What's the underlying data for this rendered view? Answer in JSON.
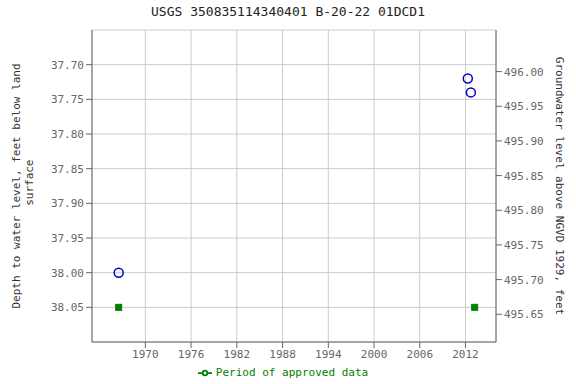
{
  "chart_data": {
    "type": "scatter",
    "title": "USGS 350835114340401 B-20-22 01DCD1",
    "ylabel": "Depth to water level, feet below land\n surface",
    "y2label": "Groundwater level above NGVD 1929, feet",
    "xlim": [
      1963,
      2016
    ],
    "xticks": [
      1970,
      1976,
      1982,
      1988,
      1994,
      2000,
      2006,
      2012
    ],
    "ylim": [
      38.1,
      37.65
    ],
    "yticks": [
      {
        "value": 37.7,
        "label": "37.70"
      },
      37.75,
      {
        "value": 37.8,
        "label": "37.80"
      },
      37.85,
      {
        "value": 37.9,
        "label": "37.90"
      },
      37.95,
      {
        "value": 38.0,
        "label": "38.00"
      },
      38.05
    ],
    "y2lim": [
      495.61,
      496.06
    ],
    "y2ticks": [
      495.65,
      {
        "value": 495.7,
        "label": "495.70"
      },
      495.75,
      {
        "value": 495.8,
        "label": "495.80"
      },
      495.85,
      {
        "value": 495.9,
        "label": "495.90"
      },
      495.95,
      {
        "value": 496.0,
        "label": "496.00"
      }
    ],
    "series": [
      {
        "color": "#0000cc",
        "marker": "circle",
        "x": [
          1966.5,
          2012.3,
          2012.7
        ],
        "values": [
          38.0,
          37.72,
          37.74
        ]
      },
      {
        "name": "Period of approved data",
        "color": "#008000",
        "marker": "square",
        "x": [
          1966.5,
          2013.2
        ],
        "values": [
          38.05,
          38.05
        ]
      }
    ],
    "grid": true,
    "legend": "bottom"
  }
}
